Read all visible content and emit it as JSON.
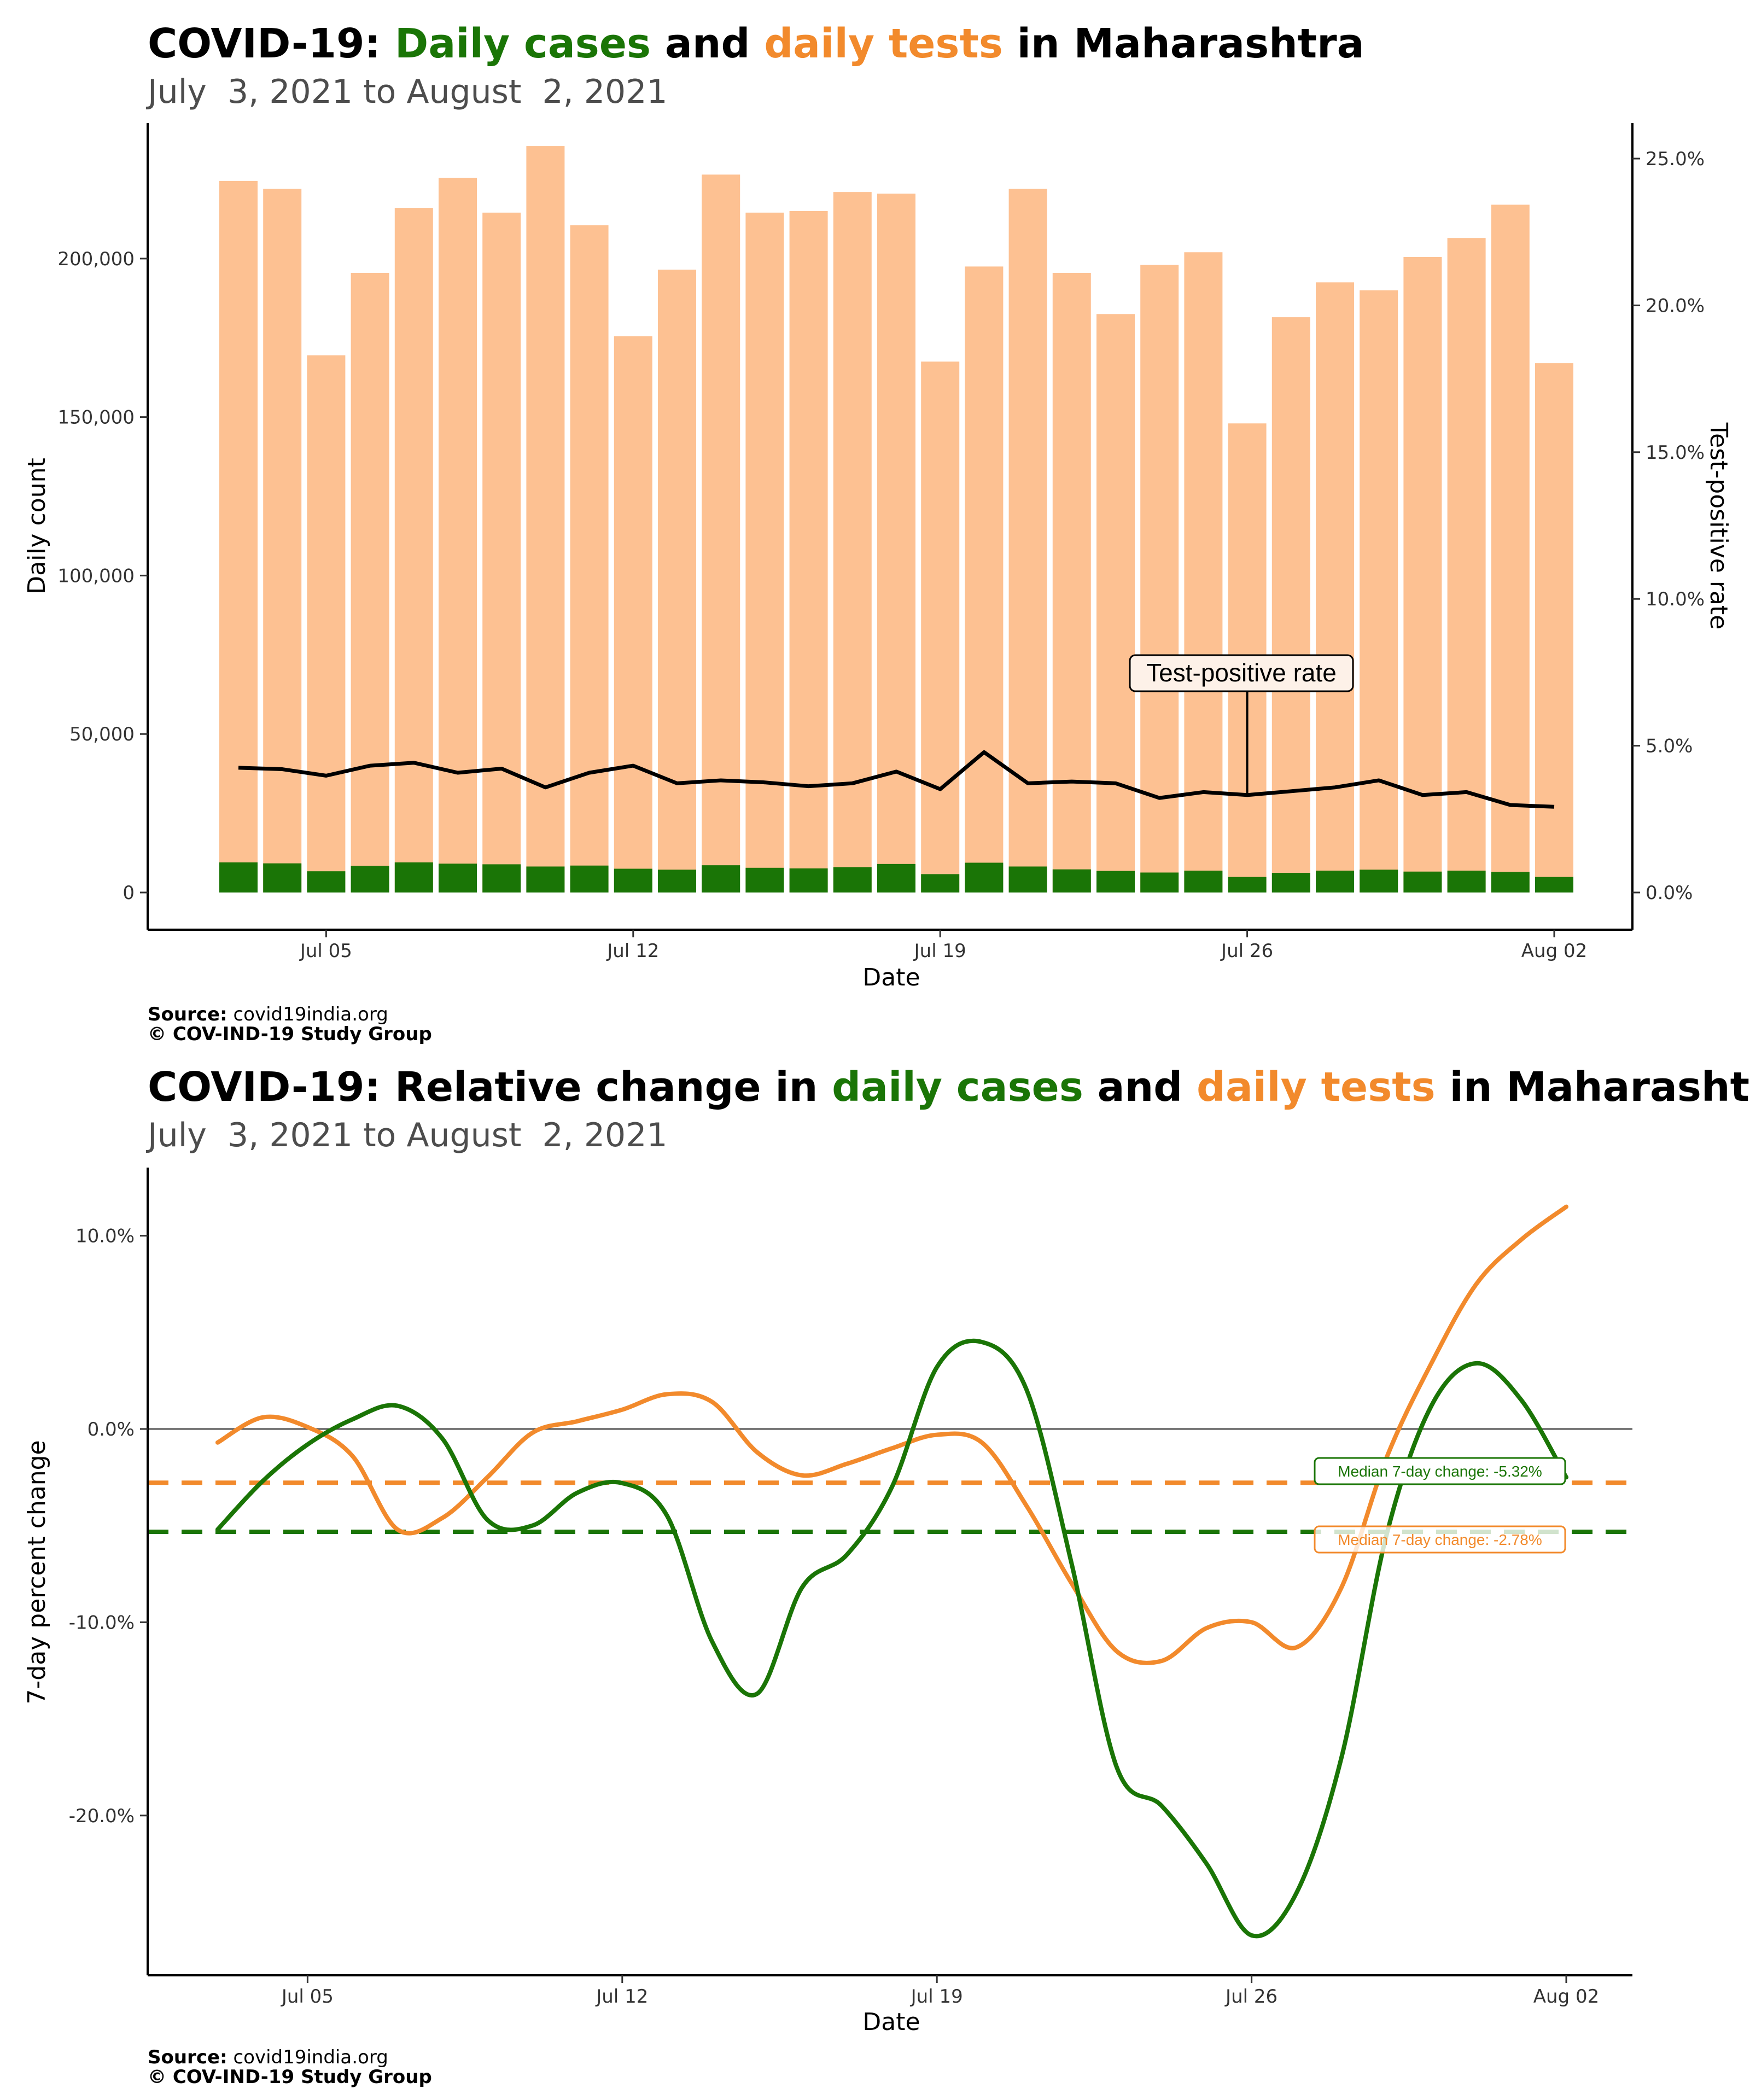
{
  "chart_data": [
    {
      "type": "bar",
      "title": {
        "prefix": "COVID-19: ",
        "part_cases": "Daily cases",
        "mid": " and ",
        "part_tests": "daily tests",
        "suffix": " in Maharashtra"
      },
      "subtitle": "July  3, 2021 to August  2, 2021",
      "xlabel": "Date",
      "ylabel": "Daily count",
      "y2label": "Test-positive rate",
      "ylim": [
        0,
        235000
      ],
      "y2lim": [
        0,
        0.25
      ],
      "x_ticks": [
        "Jul 05",
        "Jul 12",
        "Jul 19",
        "Jul 26",
        "Aug 02"
      ],
      "y_ticks": [
        "0",
        "50,000",
        "100,000",
        "150,000",
        "200,000"
      ],
      "y2_ticks": [
        "0.0%",
        "5.0%",
        "10.0%",
        "15.0%",
        "20.0%",
        "25.0%"
      ],
      "x": [
        "2021-07-03",
        "2021-07-04",
        "2021-07-05",
        "2021-07-06",
        "2021-07-07",
        "2021-07-08",
        "2021-07-09",
        "2021-07-10",
        "2021-07-11",
        "2021-07-12",
        "2021-07-13",
        "2021-07-14",
        "2021-07-15",
        "2021-07-16",
        "2021-07-17",
        "2021-07-18",
        "2021-07-19",
        "2021-07-20",
        "2021-07-21",
        "2021-07-22",
        "2021-07-23",
        "2021-07-24",
        "2021-07-25",
        "2021-07-26",
        "2021-07-27",
        "2021-07-28",
        "2021-07-29",
        "2021-07-30",
        "2021-07-31",
        "2021-08-01",
        "2021-08-02"
      ],
      "series": [
        {
          "name": "daily tests",
          "color": "#fdc192",
          "values": [
            224500,
            222000,
            169500,
            195500,
            216000,
            225500,
            214500,
            235500,
            210500,
            175500,
            196500,
            226500,
            214500,
            215000,
            221000,
            220500,
            167500,
            197500,
            222000,
            195500,
            182500,
            198000,
            202000,
            148000,
            181500,
            192500,
            190000,
            200500,
            206500,
            217000,
            167000
          ]
        },
        {
          "name": "daily cases",
          "color": "#1a7506",
          "values": [
            9500,
            9200,
            6700,
            8400,
            9500,
            9100,
            8900,
            8200,
            8500,
            7500,
            7200,
            8600,
            7800,
            7600,
            8000,
            9000,
            5800,
            9400,
            8200,
            7300,
            6800,
            6300,
            6900,
            4900,
            6200,
            6900,
            7200,
            6600,
            6900,
            6500,
            4900
          ]
        },
        {
          "name": "Test-positive rate",
          "color": "#000000",
          "values": [
            0.0425,
            0.042,
            0.0398,
            0.0432,
            0.0442,
            0.0408,
            0.0422,
            0.0358,
            0.0408,
            0.0432,
            0.0372,
            0.0382,
            0.0375,
            0.0362,
            0.0372,
            0.0412,
            0.0352,
            0.0478,
            0.0372,
            0.0378,
            0.0372,
            0.0322,
            0.0342,
            0.0332,
            0.0345,
            0.0358,
            0.0382,
            0.0332,
            0.0342,
            0.0298,
            0.0292
          ]
        }
      ],
      "annotations": [
        {
          "text": "Test-positive rate",
          "x": "2021-07-26"
        }
      ],
      "source_label": "Source:",
      "source_text": " covid19india.org",
      "copyright": "© COV-IND-19 Study Group",
      "grid": false
    },
    {
      "type": "line",
      "title": {
        "prefix": "COVID-19: Relative change in ",
        "part_cases": "daily cases",
        "mid": " and ",
        "part_tests": "daily tests",
        "suffix": " in Maharashtra"
      },
      "subtitle": "July  3, 2021 to August  2, 2021",
      "xlabel": "Date",
      "ylabel": "7-day percent change",
      "ylim": [
        -0.28,
        0.135
      ],
      "x_ticks": [
        "Jul 05",
        "Jul 12",
        "Jul 19",
        "Jul 26",
        "Aug 02"
      ],
      "y_ticks": [
        "-20.0%",
        "-10.0%",
        "0.0%",
        "10.0%"
      ],
      "x": [
        "2021-07-03",
        "2021-07-04",
        "2021-07-05",
        "2021-07-06",
        "2021-07-07",
        "2021-07-08",
        "2021-07-09",
        "2021-07-10",
        "2021-07-11",
        "2021-07-12",
        "2021-07-13",
        "2021-07-14",
        "2021-07-15",
        "2021-07-16",
        "2021-07-17",
        "2021-07-18",
        "2021-07-19",
        "2021-07-20",
        "2021-07-21",
        "2021-07-22",
        "2021-07-23",
        "2021-07-24",
        "2021-07-25",
        "2021-07-26",
        "2021-07-27",
        "2021-07-28",
        "2021-07-29",
        "2021-07-30",
        "2021-07-31",
        "2021-08-01",
        "2021-08-02"
      ],
      "series": [
        {
          "name": "daily cases",
          "color": "#1a7506",
          "values": [
            -0.052,
            -0.027,
            -0.008,
            0.005,
            0.012,
            -0.005,
            -0.047,
            -0.05,
            -0.033,
            -0.028,
            -0.045,
            -0.11,
            -0.137,
            -0.082,
            -0.065,
            -0.03,
            0.032,
            0.045,
            0.02,
            -0.07,
            -0.175,
            -0.195,
            -0.225,
            -0.262,
            -0.24,
            -0.17,
            -0.055,
            0.012,
            0.034,
            0.015,
            -0.025
          ]
        },
        {
          "name": "daily tests",
          "color": "#f28a2c",
          "values": [
            -0.007,
            0.006,
            0.001,
            -0.014,
            -0.052,
            -0.046,
            -0.025,
            -0.002,
            0.004,
            0.01,
            0.018,
            0.014,
            -0.012,
            -0.024,
            -0.018,
            -0.01,
            -0.003,
            -0.007,
            -0.04,
            -0.08,
            -0.115,
            -0.12,
            -0.103,
            -0.1,
            -0.113,
            -0.082,
            -0.015,
            0.034,
            0.075,
            0.098,
            0.115
          ]
        }
      ],
      "reference_lines": [
        {
          "value": -0.0278,
          "color": "#f28a2c"
        },
        {
          "value": -0.0532,
          "color": "#1a7506"
        },
        {
          "value": 0,
          "color": "#555555"
        }
      ],
      "annotations": [
        {
          "text": "Median 7-day change: -5.32%",
          "color": "#1a7506"
        },
        {
          "text": "Median 7-day change: -2.78%",
          "color": "#f28a2c"
        }
      ],
      "source_label": "Source:",
      "source_text": " covid19india.org",
      "copyright": "© COV-IND-19 Study Group",
      "grid": false
    }
  ]
}
